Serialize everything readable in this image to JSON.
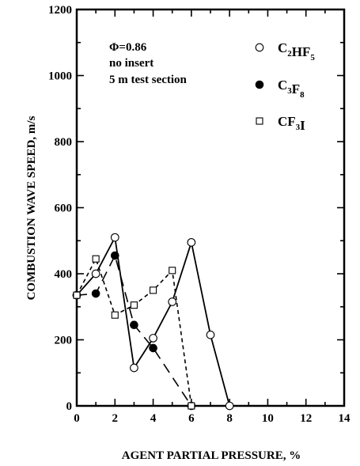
{
  "chart_data": {
    "type": "scatter",
    "title": "",
    "xlabel": "AGENT PARTIAL PRESSURE, %",
    "ylabel": "COMBUSTION WAVE SPEED, m/s",
    "xlim": [
      0,
      14
    ],
    "ylim": [
      0,
      1200
    ],
    "xticks": [
      "0",
      "2",
      "4",
      "6",
      "8",
      "10",
      "12",
      "14"
    ],
    "yticks": [
      "0",
      "200",
      "400",
      "600",
      "800",
      "1000",
      "1200"
    ],
    "grid": false,
    "legend_position": "top-right",
    "annotations": [
      "Φ=0.86",
      "no insert",
      "5 m test section"
    ],
    "series": [
      {
        "name": "C2HF5",
        "label_parts": [
          [
            "C",
            ""
          ],
          [
            "2",
            "sub"
          ],
          [
            "HF",
            ""
          ],
          [
            "5",
            "sub"
          ]
        ],
        "marker": "open-circle",
        "line": "solid",
        "x": [
          0,
          1,
          2,
          3,
          4,
          5,
          6,
          7,
          8
        ],
        "y": [
          335,
          400,
          510,
          115,
          205,
          315,
          495,
          215,
          0
        ]
      },
      {
        "name": "C3F8",
        "label_parts": [
          [
            "C",
            ""
          ],
          [
            "3",
            "sub"
          ],
          [
            "F",
            ""
          ],
          [
            "8",
            "sub"
          ]
        ],
        "marker": "filled-circle",
        "line": "long-dash",
        "x": [
          0,
          1,
          2,
          3,
          4,
          6
        ],
        "y": [
          335,
          340,
          455,
          245,
          175,
          0
        ]
      },
      {
        "name": "CF3I",
        "label_parts": [
          [
            "CF",
            ""
          ],
          [
            "3",
            "sub"
          ],
          [
            "I",
            ""
          ]
        ],
        "marker": "open-square",
        "line": "short-dash",
        "x": [
          0,
          1,
          2,
          3,
          4,
          5,
          6
        ],
        "y": [
          335,
          445,
          275,
          305,
          350,
          410,
          0
        ]
      }
    ]
  }
}
